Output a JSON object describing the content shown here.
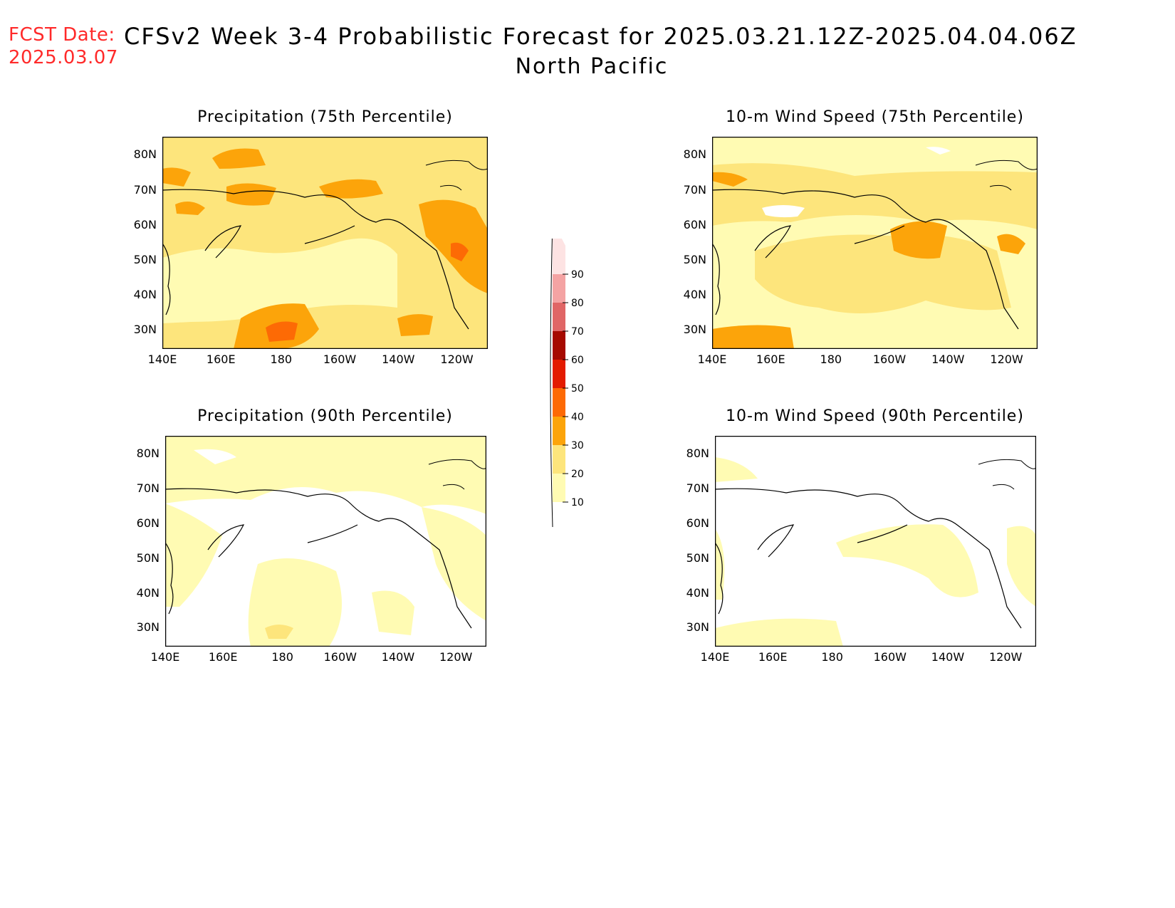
{
  "header": {
    "fcst_label": "FCST Date:",
    "fcst_date": "2025.03.07",
    "title": "CFSv2 Week 3-4 Probabilistic Forecast for 2025.03.21.12Z-2025.04.04.06Z",
    "subtitle": "North Pacific"
  },
  "panels": [
    {
      "title": "Precipitation (75th Percentile)"
    },
    {
      "title": "10-m Wind Speed (75th Percentile)"
    },
    {
      "title": "Precipitation (90th Percentile)"
    },
    {
      "title": "10-m Wind Speed (90th Percentile)"
    }
  ],
  "axes": {
    "lat_labels": [
      "80N",
      "70N",
      "60N",
      "50N",
      "40N",
      "30N"
    ],
    "lon_labels": [
      "140E",
      "160E",
      "180",
      "160W",
      "140W",
      "120W"
    ]
  },
  "colorbar": {
    "levels": [
      "10",
      "20",
      "30",
      "40",
      "50",
      "60",
      "70",
      "80",
      "90"
    ],
    "colors": [
      "#fffbb3",
      "#fde57c",
      "#fca40a",
      "#fd6a05",
      "#e31b00",
      "#a60a00",
      "#e06666",
      "#f4a3a3",
      "#fde3e3"
    ]
  }
}
